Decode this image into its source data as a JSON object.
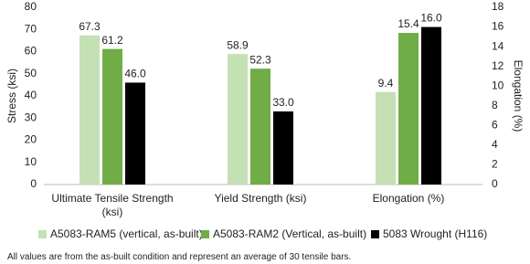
{
  "chart_data": {
    "type": "bar",
    "categories": [
      "Ultimate Tensile Strength (ksi)",
      "Yield Strength (ksi)",
      "Elongation (%)"
    ],
    "category_axis": [
      "y",
      "y",
      "y2"
    ],
    "series": [
      {
        "name": "A5083-RAM5 (vertical, as-built)",
        "color": "#c5e0b4",
        "values": [
          67.3,
          58.9,
          9.4
        ],
        "value_labels": [
          "67.3",
          "58.9",
          "9.4"
        ]
      },
      {
        "name": "A5083-RAM2 (Vertical, as-built)",
        "color": "#70ad47",
        "values": [
          61.2,
          52.3,
          15.4
        ],
        "value_labels": [
          "61.2",
          "52.3",
          "15.4"
        ]
      },
      {
        "name": "5083 Wrought (H116)",
        "color": "#000000",
        "values": [
          46.0,
          33.0,
          16.0
        ],
        "value_labels": [
          "46.0",
          "33.0",
          "16.0"
        ]
      }
    ],
    "ylabel": "Stress (ksi)",
    "y2label": "Elongation (%)",
    "ylim": [
      0,
      80
    ],
    "yticks": [
      0,
      10,
      20,
      30,
      40,
      50,
      60,
      70,
      80
    ],
    "y2lim": [
      0,
      18
    ],
    "y2ticks": [
      0,
      2,
      4,
      6,
      8,
      10,
      12,
      14,
      16,
      18
    ],
    "grid": false,
    "legend": "bottom",
    "note": "All values are from the as-built condition and represent an average of 30 tensile bars."
  }
}
